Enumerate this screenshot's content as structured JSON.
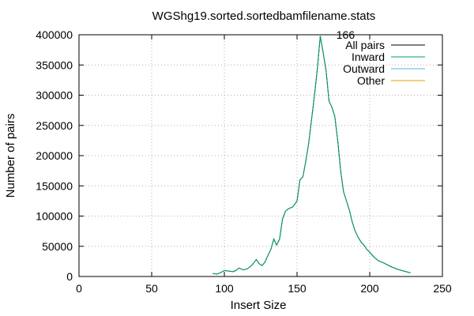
{
  "chart_data": {
    "type": "line",
    "title": "WGShg19.sorted.sortedbamfilename.stats",
    "xlabel": "Insert Size",
    "ylabel": "Number of pairs",
    "xlim": [
      0,
      250
    ],
    "ylim": [
      0,
      400000
    ],
    "x_ticks": [
      0,
      50,
      100,
      150,
      200,
      250
    ],
    "y_ticks": [
      0,
      50000,
      100000,
      150000,
      200000,
      250000,
      300000,
      350000,
      400000
    ],
    "grid": true,
    "legend_position": "top-right",
    "annotations": [
      {
        "text": "166",
        "x": 166,
        "y": 400000
      }
    ],
    "series": [
      {
        "name": "All pairs",
        "color": "#000000",
        "x": [
          92,
          95,
          98,
          100,
          103,
          106,
          108,
          110,
          113,
          116,
          119,
          122,
          124,
          126,
          128,
          130,
          132,
          134,
          136,
          138,
          140,
          142,
          144,
          147,
          150,
          152,
          154,
          156,
          158,
          160,
          162,
          164,
          166,
          168,
          170,
          172,
          174,
          176,
          178,
          180,
          182,
          184,
          186,
          188,
          190,
          192,
          194,
          196,
          198,
          200,
          203,
          206,
          210,
          214,
          218,
          222,
          225,
          228
        ],
        "values": [
          5000,
          4000,
          7000,
          10000,
          9000,
          8000,
          10000,
          14000,
          11000,
          13000,
          19000,
          28000,
          21000,
          18000,
          24000,
          35000,
          45000,
          62000,
          52000,
          62000,
          95000,
          108000,
          112000,
          115000,
          125000,
          160000,
          165000,
          190000,
          220000,
          260000,
          300000,
          345000,
          398000,
          370000,
          340000,
          290000,
          280000,
          265000,
          225000,
          175000,
          140000,
          125000,
          110000,
          90000,
          75000,
          65000,
          57000,
          52000,
          45000,
          40000,
          32000,
          26000,
          22000,
          17000,
          13000,
          10000,
          8000,
          6000
        ]
      },
      {
        "name": "Inward",
        "color": "#009e73",
        "x": [
          92,
          95,
          98,
          100,
          103,
          106,
          108,
          110,
          113,
          116,
          119,
          122,
          124,
          126,
          128,
          130,
          132,
          134,
          136,
          138,
          140,
          142,
          144,
          147,
          150,
          152,
          154,
          156,
          158,
          160,
          162,
          164,
          166,
          168,
          170,
          172,
          174,
          176,
          178,
          180,
          182,
          184,
          186,
          188,
          190,
          192,
          194,
          196,
          198,
          200,
          203,
          206,
          210,
          214,
          218,
          222,
          225,
          228
        ],
        "values": [
          5000,
          4000,
          7000,
          10000,
          9000,
          8000,
          10000,
          14000,
          11000,
          13000,
          19000,
          28000,
          21000,
          18000,
          24000,
          35000,
          45000,
          62000,
          52000,
          62000,
          95000,
          108000,
          112000,
          115000,
          125000,
          160000,
          165000,
          190000,
          220000,
          260000,
          300000,
          345000,
          398000,
          370000,
          340000,
          290000,
          280000,
          265000,
          225000,
          175000,
          140000,
          125000,
          110000,
          90000,
          75000,
          65000,
          57000,
          52000,
          45000,
          40000,
          32000,
          26000,
          22000,
          17000,
          13000,
          10000,
          8000,
          6000
        ]
      },
      {
        "name": "Outward",
        "color": "#56b4e9",
        "x": [],
        "values": []
      },
      {
        "name": "Other",
        "color": "#e69f00",
        "x": [],
        "values": []
      }
    ]
  }
}
